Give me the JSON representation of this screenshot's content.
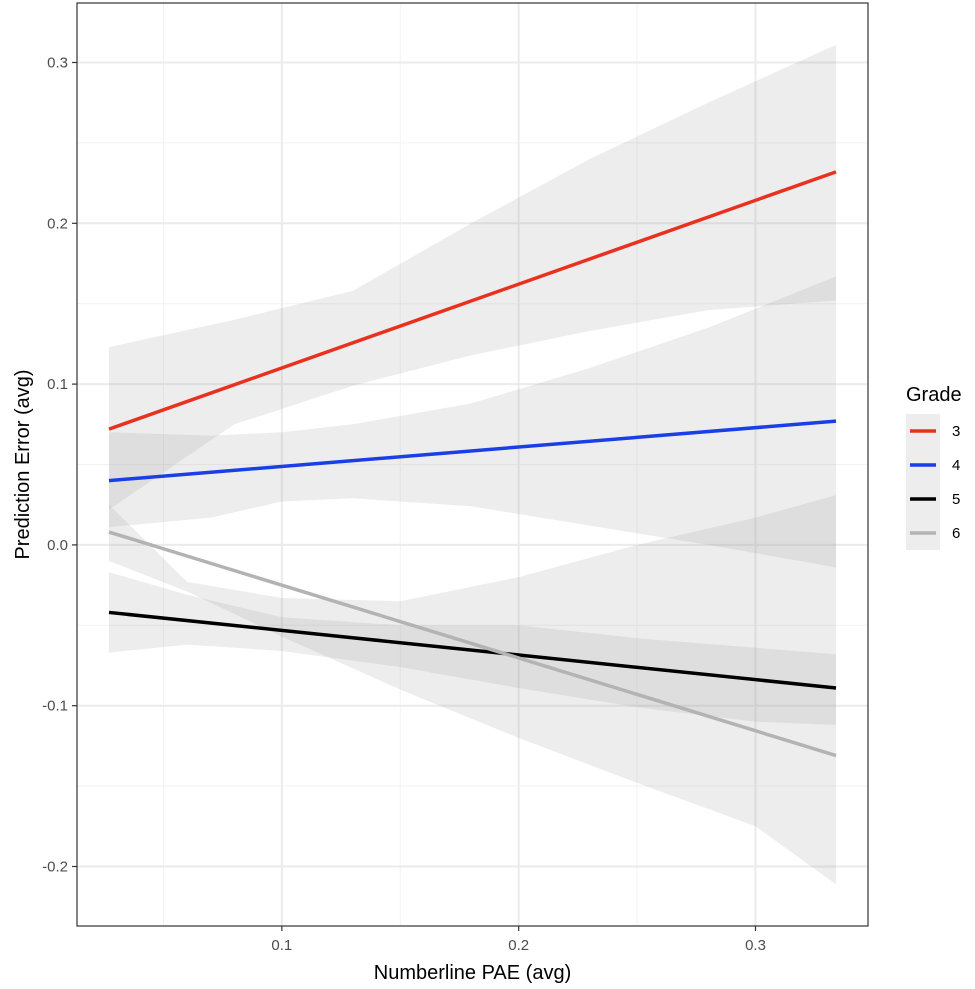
{
  "chart_data": {
    "type": "line",
    "title": "",
    "xlabel": "Numberline PAE (avg)",
    "ylabel": "Prediction Error (avg)",
    "xlim": [
      0.0135,
      0.3475
    ],
    "ylim": [
      -0.237,
      0.337
    ],
    "x_major_ticks": [
      0.1,
      0.2,
      0.3
    ],
    "x_tick_labels": [
      "0.1",
      "0.2",
      "0.3"
    ],
    "x_minor_ticks": [
      0.05,
      0.15,
      0.25
    ],
    "y_major_ticks": [
      -0.2,
      -0.1,
      0.0,
      0.1,
      0.2,
      0.3
    ],
    "y_tick_labels": [
      "-0.2",
      "-0.1",
      "0.0",
      "0.1",
      "0.2",
      "0.3"
    ],
    "y_minor_ticks": [
      -0.15,
      -0.05,
      0.05,
      0.15,
      0.25
    ],
    "grid": true,
    "legend": {
      "title": "Grade",
      "position": "right"
    },
    "series": [
      {
        "name": "3",
        "color": "#e8311e",
        "x": [
          0.027,
          0.334
        ],
        "y": [
          0.072,
          0.232
        ],
        "band_x": [
          0.027,
          0.08,
          0.13,
          0.18,
          0.23,
          0.28,
          0.334
        ],
        "band_lower": [
          0.022,
          0.075,
          0.099,
          0.118,
          0.133,
          0.146,
          0.152
        ],
        "band_upper": [
          0.123,
          0.14,
          0.158,
          0.2,
          0.24,
          0.275,
          0.311
        ]
      },
      {
        "name": "4",
        "color": "#1b3fe6",
        "x": [
          0.027,
          0.334
        ],
        "y": [
          0.04,
          0.077
        ],
        "band_x": [
          0.027,
          0.07,
          0.1,
          0.13,
          0.18,
          0.23,
          0.28,
          0.334
        ],
        "band_lower": [
          0.011,
          0.017,
          0.027,
          0.029,
          0.024,
          0.012,
          0.0,
          -0.014
        ],
        "band_upper": [
          0.07,
          0.068,
          0.07,
          0.075,
          0.088,
          0.11,
          0.135,
          0.167
        ]
      },
      {
        "name": "5",
        "color": "#000000",
        "x": [
          0.027,
          0.334
        ],
        "y": [
          -0.042,
          -0.089
        ],
        "band_x": [
          0.027,
          0.06,
          0.1,
          0.15,
          0.2,
          0.25,
          0.3,
          0.334
        ],
        "band_lower": [
          -0.067,
          -0.062,
          -0.066,
          -0.076,
          -0.089,
          -0.101,
          -0.11,
          -0.112
        ],
        "band_upper": [
          -0.017,
          -0.031,
          -0.045,
          -0.05,
          -0.05,
          -0.058,
          -0.064,
          -0.068
        ]
      },
      {
        "name": "6",
        "color": "#b3b3b3",
        "x": [
          0.027,
          0.334
        ],
        "y": [
          0.008,
          -0.131
        ],
        "band_x": [
          0.027,
          0.06,
          0.1,
          0.15,
          0.2,
          0.25,
          0.3,
          0.334
        ],
        "band_lower": [
          -0.01,
          -0.029,
          -0.057,
          -0.09,
          -0.12,
          -0.148,
          -0.175,
          -0.211
        ],
        "band_upper": [
          0.025,
          -0.023,
          -0.033,
          -0.035,
          -0.02,
          0.0,
          0.017,
          0.031
        ]
      }
    ]
  }
}
